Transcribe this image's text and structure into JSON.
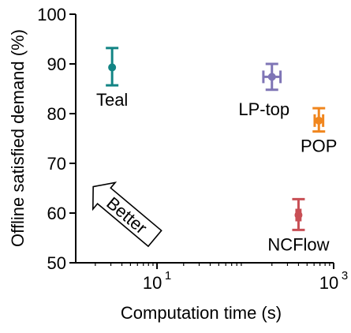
{
  "chart_data": {
    "type": "scatter",
    "xlabel": "Computation time (s)",
    "ylabel": "Offline satisfied demand (%)",
    "xscale": "log",
    "xlim": [
      1.2,
      1000
    ],
    "ylim": [
      50,
      100
    ],
    "x_ticks": [
      {
        "value": 10,
        "base": "10",
        "exp": "1"
      },
      {
        "value": 1000,
        "base": "10",
        "exp": "3"
      }
    ],
    "y_ticks": [
      50,
      60,
      70,
      80,
      90,
      100
    ],
    "y_tick_labels": [
      "50",
      "60",
      "70",
      "80",
      "90",
      "100"
    ],
    "points": [
      {
        "name": "Teal",
        "x": 3.1,
        "x_err": [
          0,
          0
        ],
        "y": 89.3,
        "y_err": [
          85.7,
          93.2
        ],
        "color": "#128484",
        "label_pos": "below"
      },
      {
        "name": "LP-top",
        "x": 200,
        "x_err": [
          160,
          250
        ],
        "y": 87.4,
        "y_err": [
          84.8,
          90.0
        ],
        "color": "#7f75b6",
        "label_pos": "below-left"
      },
      {
        "name": "POP",
        "x": 680,
        "x_err": [
          610,
          760
        ],
        "y": 78.6,
        "y_err": [
          76.4,
          81.1
        ],
        "color": "#f0861e",
        "label_pos": "below"
      },
      {
        "name": "NCFlow",
        "x": 400,
        "x_err": [
          380,
          420
        ],
        "y": 59.6,
        "y_err": [
          56.6,
          62.8
        ],
        "color": "#c84f55",
        "label_pos": "below"
      }
    ],
    "annotation": {
      "text": "Better",
      "shape": "arrow",
      "direction": "up-left"
    }
  }
}
